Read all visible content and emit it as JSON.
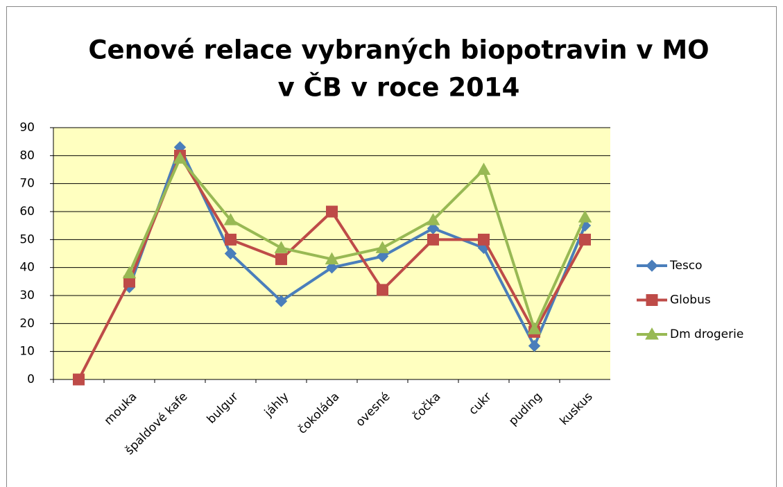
{
  "chart_data": {
    "type": "line",
    "title": [
      "Cenové relace vybraných biopotravin v MO",
      "v ČB v roce 2014"
    ],
    "categories": [
      null,
      "mouka",
      "špaldové kafe",
      "bulgur",
      "jáhly",
      "čokoláda",
      "ovesné",
      "čočka",
      "cukr",
      "puding",
      "kuskus"
    ],
    "series": [
      {
        "name": "Tesco",
        "color": "#4a7ebb",
        "marker": "diamond",
        "values": [
          null,
          33,
          83,
          45,
          28,
          40,
          44,
          54,
          47,
          12,
          55
        ]
      },
      {
        "name": "Globus",
        "color": "#be4b48",
        "marker": "square",
        "values": [
          0,
          35,
          80,
          50,
          43,
          60,
          32,
          50,
          50,
          17,
          50
        ]
      },
      {
        "name": "Dm drogerie",
        "color": "#98b954",
        "marker": "triangle",
        "values": [
          null,
          38,
          79,
          57,
          47,
          43,
          47,
          57,
          75,
          18,
          58
        ]
      }
    ],
    "ylim": [
      0,
      90
    ],
    "yticks": [
      0,
      10,
      20,
      30,
      40,
      50,
      60,
      70,
      80,
      90
    ],
    "grid": true,
    "legend": "right"
  }
}
